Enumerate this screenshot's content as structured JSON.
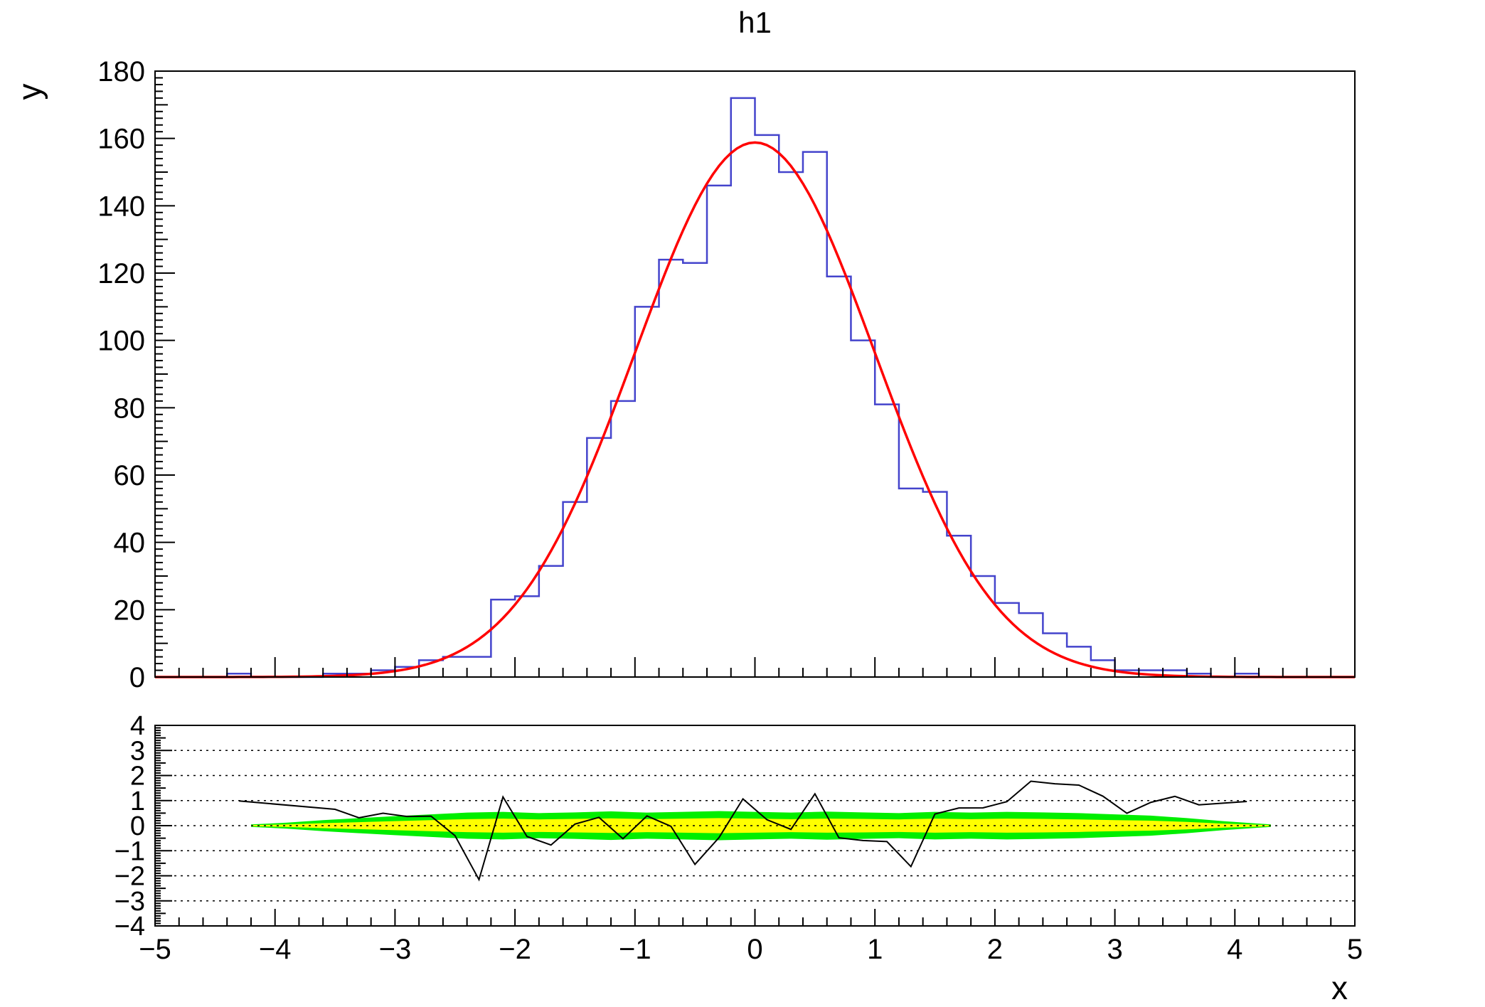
{
  "canvas": {
    "background": "#ffffff"
  },
  "chart_data": [
    {
      "type": "bar",
      "subtype": "histogram-with-fit",
      "title": "h1",
      "xlabel": "x",
      "ylabel": "y",
      "xlim": [
        -5,
        5
      ],
      "ylim": [
        0,
        180
      ],
      "x_ticks": [
        -5,
        -4,
        -3,
        -2,
        -1,
        0,
        1,
        2,
        3,
        4,
        5
      ],
      "y_ticks": [
        0,
        20,
        40,
        60,
        80,
        100,
        120,
        140,
        160,
        180
      ],
      "bin_start": -5,
      "bin_width": 0.2,
      "counts": [
        0,
        0,
        0,
        1,
        0,
        0,
        0,
        1,
        1,
        2,
        3,
        5,
        6,
        6,
        23,
        24,
        33,
        52,
        71,
        82,
        110,
        124,
        123,
        146,
        172,
        161,
        150,
        156,
        119,
        100,
        81,
        56,
        55,
        42,
        30,
        22,
        19,
        13,
        9,
        5,
        2,
        2,
        2,
        1,
        0,
        1,
        0,
        0,
        0,
        0
      ],
      "hist_color": "#4444cc",
      "fit": {
        "type": "gaussian",
        "amplitude": 158.8,
        "mean": 0.0,
        "sigma": 1.0,
        "color": "#ff0000"
      }
    },
    {
      "type": "line",
      "subtype": "pull-panel",
      "ylim": [
        -4,
        4
      ],
      "y_ticks": [
        -4,
        -3,
        -2,
        -1,
        0,
        1,
        2,
        3,
        4
      ],
      "grid_lines": [
        -3,
        -2,
        -1,
        0,
        1,
        2,
        3
      ],
      "line_color": "#000000",
      "bands": {
        "green_color": "#00ee00",
        "yellow_color": "#ffff00",
        "x": [
          -4.2,
          -3.9,
          -3.6,
          -3.3,
          -3.0,
          -2.7,
          -2.4,
          -2.1,
          -1.8,
          -1.5,
          -1.2,
          -0.9,
          -0.6,
          -0.3,
          0.0,
          0.3,
          0.6,
          0.9,
          1.2,
          1.5,
          1.8,
          2.1,
          2.4,
          2.7,
          3.0,
          3.3,
          3.6,
          3.9,
          4.3
        ],
        "green_halfwidth": [
          0.05,
          0.12,
          0.22,
          0.3,
          0.38,
          0.45,
          0.52,
          0.55,
          0.5,
          0.53,
          0.57,
          0.52,
          0.55,
          0.58,
          0.55,
          0.52,
          0.56,
          0.53,
          0.5,
          0.55,
          0.52,
          0.55,
          0.53,
          0.5,
          0.45,
          0.4,
          0.3,
          0.18,
          0.05
        ],
        "yellow_halfwidth": [
          0.02,
          0.05,
          0.1,
          0.14,
          0.18,
          0.22,
          0.26,
          0.28,
          0.25,
          0.27,
          0.29,
          0.26,
          0.28,
          0.3,
          0.28,
          0.26,
          0.28,
          0.27,
          0.25,
          0.28,
          0.26,
          0.28,
          0.27,
          0.25,
          0.22,
          0.2,
          0.15,
          0.08,
          0.02
        ]
      }
    }
  ]
}
